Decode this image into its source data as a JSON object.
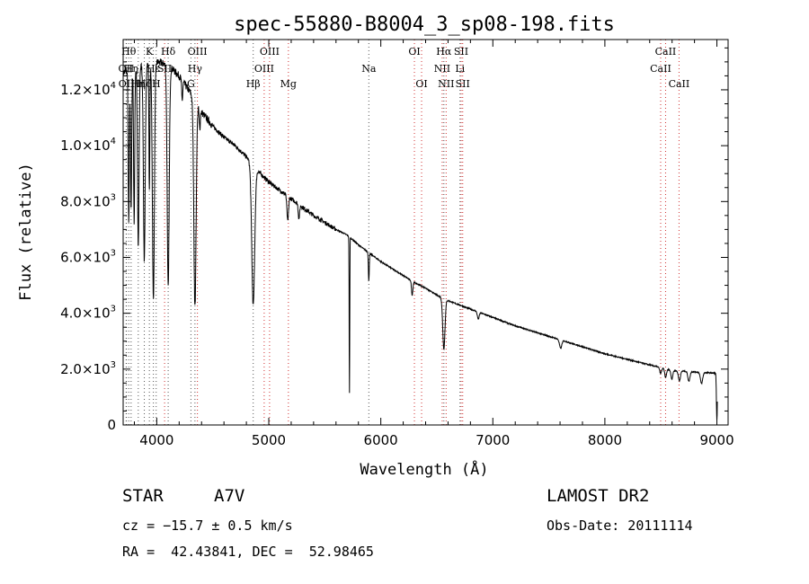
{
  "chart_data": {
    "type": "line",
    "title": "spec-55880-B8004_3_sp08-198.fits",
    "xlabel": "Wavelength (Å)",
    "ylabel": "Flux (relative)",
    "xlim": [
      3700,
      9100
    ],
    "ylim": [
      0,
      13800
    ],
    "x_ticks": [
      4000,
      5000,
      6000,
      7000,
      8000,
      9000
    ],
    "x_tick_labels": [
      "4000",
      "5000",
      "6000",
      "7000",
      "8000",
      "9000"
    ],
    "y_ticks": [
      0,
      2000,
      4000,
      6000,
      8000,
      10000,
      12000
    ],
    "y_tick_labels": [
      {
        "mant": "0",
        "exp": ""
      },
      {
        "mant": "2.0×10",
        "exp": "3"
      },
      {
        "mant": "4.0×10",
        "exp": "3"
      },
      {
        "mant": "6.0×10",
        "exp": "3"
      },
      {
        "mant": "8.0×10",
        "exp": "3"
      },
      {
        "mant": "1.0×10",
        "exp": "4"
      },
      {
        "mant": "1.2×10",
        "exp": "4"
      }
    ],
    "continuum": [
      [
        3700,
        12600
      ],
      [
        3800,
        12800
      ],
      [
        3900,
        12900
      ],
      [
        4000,
        13000
      ],
      [
        4100,
        12900
      ],
      [
        4200,
        12500
      ],
      [
        4300,
        11900
      ],
      [
        4400,
        11200
      ],
      [
        4500,
        10700
      ],
      [
        4600,
        10300
      ],
      [
        4700,
        10000
      ],
      [
        4800,
        9600
      ],
      [
        4900,
        9100
      ],
      [
        5000,
        8700
      ],
      [
        5100,
        8400
      ],
      [
        5200,
        8100
      ],
      [
        5300,
        7800
      ],
      [
        5400,
        7500
      ],
      [
        5500,
        7250
      ],
      [
        5600,
        7000
      ],
      [
        5700,
        6800
      ],
      [
        5800,
        6450
      ],
      [
        5900,
        6150
      ],
      [
        6000,
        5850
      ],
      [
        6100,
        5600
      ],
      [
        6200,
        5350
      ],
      [
        6300,
        5100
      ],
      [
        6400,
        4900
      ],
      [
        6500,
        4650
      ],
      [
        6600,
        4450
      ],
      [
        6700,
        4300
      ],
      [
        6800,
        4150
      ],
      [
        6900,
        4000
      ],
      [
        7000,
        3850
      ],
      [
        7200,
        3550
      ],
      [
        7400,
        3300
      ],
      [
        7600,
        3050
      ],
      [
        7800,
        2800
      ],
      [
        8000,
        2550
      ],
      [
        8200,
        2350
      ],
      [
        8400,
        2150
      ],
      [
        8600,
        1950
      ],
      [
        8800,
        1900
      ],
      [
        9000,
        1850
      ]
    ],
    "absorptions": [
      {
        "center": 3750,
        "depth": 5500,
        "width": 5
      },
      {
        "center": 3771,
        "depth": 5000,
        "width": 5
      },
      {
        "center": 3798,
        "depth": 5500,
        "width": 5
      },
      {
        "center": 3835,
        "depth": 6500,
        "width": 7
      },
      {
        "center": 3889,
        "depth": 7000,
        "width": 8
      },
      {
        "center": 3934,
        "depth": 4500,
        "width": 4
      },
      {
        "center": 3970,
        "depth": 8500,
        "width": 9
      },
      {
        "center": 4102,
        "depth": 8000,
        "width": 9
      },
      {
        "center": 4227,
        "depth": 700,
        "width": 5
      },
      {
        "center": 4341,
        "depth": 7400,
        "width": 10
      },
      {
        "center": 4384,
        "depth": 700,
        "width": 5
      },
      {
        "center": 4861,
        "depth": 5000,
        "width": 13
      },
      {
        "center": 5169,
        "depth": 900,
        "width": 7
      },
      {
        "center": 5269,
        "depth": 500,
        "width": 6
      },
      {
        "center": 5720,
        "depth": 5600,
        "width": 2.5
      },
      {
        "center": 5893,
        "depth": 1000,
        "width": 4
      },
      {
        "center": 6280,
        "depth": 500,
        "width": 6
      },
      {
        "center": 6563,
        "depth": 1800,
        "width": 10
      },
      {
        "center": 6870,
        "depth": 250,
        "width": 8
      },
      {
        "center": 7605,
        "depth": 300,
        "width": 10
      },
      {
        "center": 8498,
        "depth": 200,
        "width": 8
      },
      {
        "center": 8542,
        "depth": 300,
        "width": 8
      },
      {
        "center": 8598,
        "depth": 300,
        "width": 8
      },
      {
        "center": 8665,
        "depth": 350,
        "width": 9
      },
      {
        "center": 8750,
        "depth": 350,
        "width": 9
      },
      {
        "center": 8863,
        "depth": 400,
        "width": 10
      },
      {
        "center": 9000,
        "depth": 1700,
        "width": 4
      }
    ],
    "spectral_lines": [
      {
        "w": 3727,
        "label": "OII",
        "row": 1,
        "color": "black"
      },
      {
        "w": 3729,
        "label": "OII",
        "row": 2,
        "color": "black"
      },
      {
        "w": 3750,
        "label": "Hθ",
        "row": 0,
        "color": "black"
      },
      {
        "w": 3771,
        "label": "Hη",
        "row": 1,
        "color": "black"
      },
      {
        "w": 3835,
        "label": "Hη",
        "row": 2,
        "color": "black"
      },
      {
        "w": 3889,
        "label": "Hζ",
        "row": 2,
        "color": "black"
      },
      {
        "w": 3934,
        "label": "K",
        "row": 0,
        "color": "black"
      },
      {
        "w": 3970,
        "label": "Hε",
        "row": 1,
        "color": "black"
      },
      {
        "w": 3995,
        "label": "H",
        "row": 2,
        "color": "black"
      },
      {
        "w": 4070,
        "label": "SII",
        "row": 1,
        "color": "red"
      },
      {
        "w": 4102,
        "label": "Hδ",
        "row": 0,
        "color": "black"
      },
      {
        "w": 4305,
        "label": "G",
        "row": 2,
        "color": "black"
      },
      {
        "w": 4341,
        "label": "Hγ",
        "row": 1,
        "color": "black"
      },
      {
        "w": 4363,
        "label": "OIII",
        "row": 0,
        "color": "red"
      },
      {
        "w": 4861,
        "label": "Hβ",
        "row": 2,
        "color": "black"
      },
      {
        "w": 4959,
        "label": "OIII",
        "row": 1,
        "color": "red"
      },
      {
        "w": 5007,
        "label": "OIII",
        "row": 0,
        "color": "red"
      },
      {
        "w": 5175,
        "label": "Mg",
        "row": 2,
        "color": "red"
      },
      {
        "w": 5893,
        "label": "Na",
        "row": 1,
        "color": "black"
      },
      {
        "w": 6300,
        "label": "OI",
        "row": 0,
        "color": "red"
      },
      {
        "w": 6364,
        "label": "OI",
        "row": 2,
        "color": "red"
      },
      {
        "w": 6548,
        "label": "NII",
        "row": 1,
        "color": "red"
      },
      {
        "w": 6563,
        "label": "Hα",
        "row": 0,
        "color": "black"
      },
      {
        "w": 6583,
        "label": "NII",
        "row": 2,
        "color": "red"
      },
      {
        "w": 6707,
        "label": "Li",
        "row": 1,
        "color": "black"
      },
      {
        "w": 6717,
        "label": "SII",
        "row": 0,
        "color": "red"
      },
      {
        "w": 6731,
        "label": "SII",
        "row": 2,
        "color": "red"
      },
      {
        "w": 8498,
        "label": "CaII",
        "row": 1,
        "color": "red"
      },
      {
        "w": 8542,
        "label": "CaII",
        "row": 0,
        "color": "red"
      },
      {
        "w": 8662,
        "label": "CaII",
        "row": 2,
        "color": "red"
      }
    ]
  },
  "info": {
    "object_class": "STAR",
    "subclass": "A7V",
    "survey": "LAMOST DR2",
    "cz": "cz = −15.7 ± 0.5 km/s",
    "obs_date": "Obs-Date: 20111114",
    "coords": "RA =  42.43841, DEC =  52.98465"
  }
}
